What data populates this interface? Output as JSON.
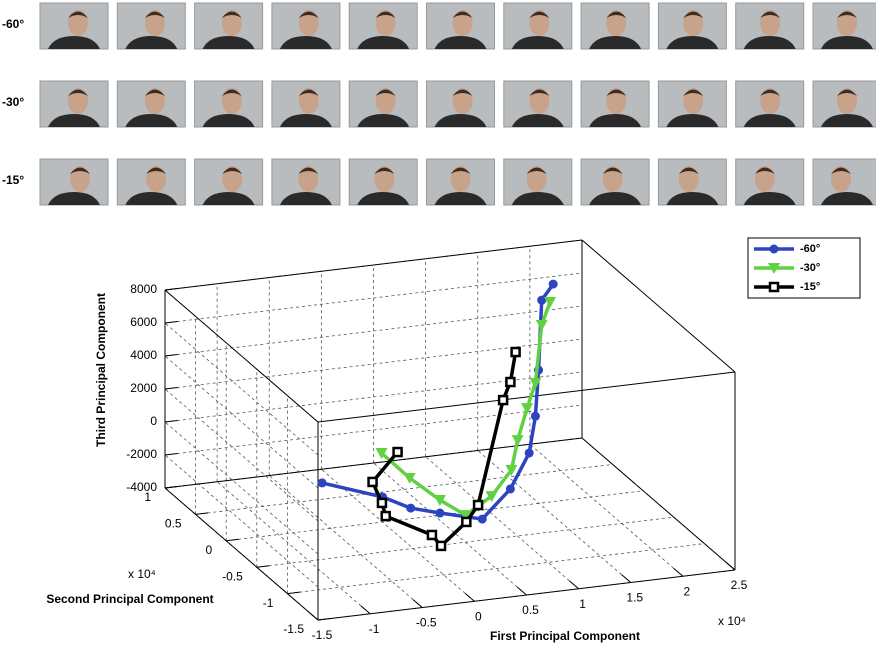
{
  "chart_data": {
    "type": "line3d",
    "xlabel": "First Principal Component",
    "ylabel": "Second Principal Component",
    "zlabel": "Third Principal Component",
    "x_exponent_label": "x 10⁴",
    "y_exponent_label": "x 10⁴",
    "xlim": [
      -1.5,
      2.5
    ],
    "ylim": [
      -1.5,
      1
    ],
    "zlim": [
      -4000,
      8000
    ],
    "xticks": [
      -1.5,
      -1,
      -0.5,
      0,
      0.5,
      1,
      1.5,
      2,
      2.5
    ],
    "yticks": [
      -1.5,
      -1,
      -0.5,
      0,
      0.5,
      1
    ],
    "zticks": [
      -4000,
      -2000,
      0,
      2000,
      4000,
      6000,
      8000
    ],
    "grid": true,
    "legend": "upper right",
    "series": [
      {
        "name": "-60°",
        "color": "#2d44c0",
        "marker": "circle",
        "x": [
          -0.58,
          0.0,
          0.27,
          0.55,
          0.78,
          1.05,
          1.23,
          1.29,
          1.32,
          1.82,
          1.93
        ],
        "y": [
          0,
          0,
          0,
          0,
          -0.3,
          -0.3,
          -0.3,
          -0.3,
          -0.3,
          0.5,
          0.5
        ],
        "z": [
          -1190,
          -2480,
          -3360,
          -3870,
          -3450,
          -1830,
          210,
          2400,
          5170,
          6470,
          7360
        ]
      },
      {
        "name": "-30°",
        "color": "#5fd142",
        "marker": "triangle",
        "x": [
          -0.01,
          0.26,
          0.55,
          0.62,
          0.87,
          1.06,
          1.12,
          1.21,
          1.29,
          1.82,
          1.9
        ],
        "y": [
          0,
          0,
          0,
          -0.3,
          -0.3,
          -0.3,
          -0.3,
          -0.3,
          -0.3,
          0.5,
          0.5
        ],
        "z": [
          190,
          -1530,
          -3080,
          -3090,
          -2130,
          -680,
          1080,
          2950,
          4410,
          4960,
          6300
        ]
      },
      {
        "name": "-15°",
        "color": "#000000",
        "marker": "square",
        "x": [
          0.32,
          0.08,
          0.17,
          0.03,
          0.18,
          0.15,
          0.51,
          0.74,
          0.98,
          1.05,
          1.1
        ],
        "y": [
          0.3,
          0.3,
          0.3,
          0,
          -0.5,
          -0.7,
          -0.5,
          -0.3,
          -0.3,
          -0.3,
          -0.3
        ],
        "z": [
          -960,
          -2590,
          -3930,
          -3660,
          -3320,
          -3320,
          -2780,
          -2570,
          3610,
          4650,
          6430
        ]
      }
    ]
  }
}
